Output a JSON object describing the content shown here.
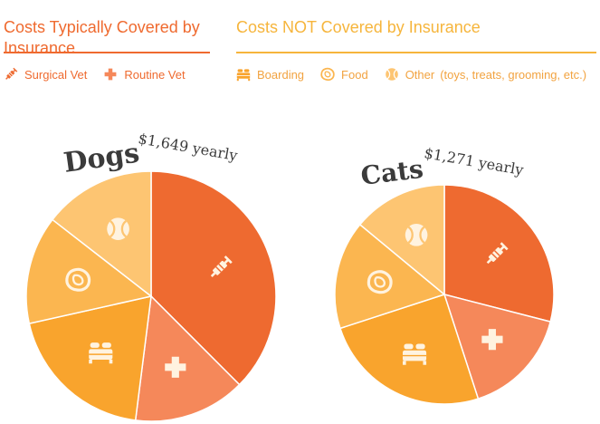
{
  "legend": {
    "covered_heading": "Costs Typically Covered by Insurance",
    "not_covered_heading": "Costs NOT Covered by Insurance",
    "covered_items": [
      {
        "label": "Surgical Vet",
        "icon": "syringe-icon",
        "color": "#ee6a30"
      },
      {
        "label": "Routine Vet",
        "icon": "cross-icon",
        "color": "#f5885a"
      }
    ],
    "not_covered_items": [
      {
        "label": "Boarding",
        "icon": "bed-icon",
        "color": "#f9a42d"
      },
      {
        "label": "Food",
        "icon": "food-icon",
        "color": "#fbb650"
      },
      {
        "label": "Other",
        "icon": "ball-icon",
        "color": "#fdc572"
      }
    ],
    "other_note": "(toys, treats, grooming, etc.)"
  },
  "chart_data": [
    {
      "type": "pie",
      "title": "Dogs",
      "subtitle": "$1,649 yearly",
      "categories": [
        "Surgical Vet",
        "Routine Vet",
        "Boarding",
        "Food",
        "Other"
      ],
      "values": [
        37.5,
        14.5,
        19.5,
        14,
        14.5
      ],
      "colors": [
        "#ee6a30",
        "#f5885a",
        "#f9a42d",
        "#fbb650",
        "#fdc572"
      ],
      "icons": [
        "syringe-icon",
        "cross-icon",
        "bed-icon",
        "food-icon",
        "ball-icon"
      ]
    },
    {
      "type": "pie",
      "title": "Cats",
      "subtitle": "$1,271 yearly",
      "categories": [
        "Surgical Vet",
        "Routine Vet",
        "Boarding",
        "Food",
        "Other"
      ],
      "values": [
        29,
        16,
        25,
        16,
        14
      ],
      "colors": [
        "#ee6a30",
        "#f5885a",
        "#f9a42d",
        "#fbb650",
        "#fdc572"
      ],
      "icons": [
        "syringe-icon",
        "cross-icon",
        "bed-icon",
        "food-icon",
        "ball-icon"
      ]
    }
  ]
}
